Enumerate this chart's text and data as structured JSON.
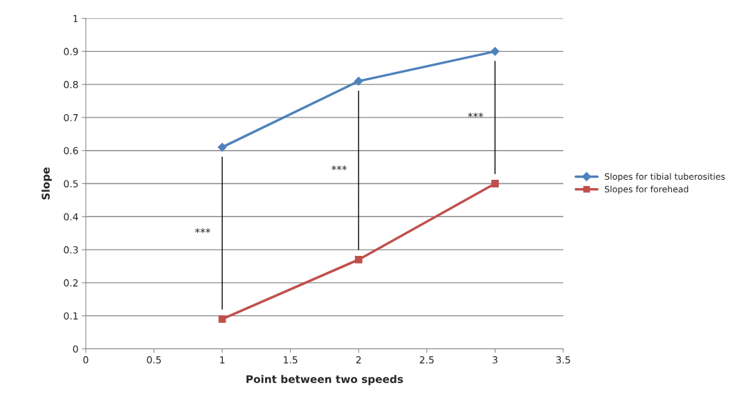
{
  "chart_data": {
    "type": "line",
    "xlabel": "Point between two speeds",
    "ylabel": "Slope",
    "x": [
      1,
      2,
      3
    ],
    "series": [
      {
        "name": "Slopes for tibial tuberosities",
        "color": "#4f81bd",
        "marker": "diamond",
        "values": [
          0.61,
          0.81,
          0.9
        ]
      },
      {
        "name": "Slopes for forehead",
        "color": "#c0504d",
        "marker": "square",
        "values": [
          0.09,
          0.27,
          0.5
        ]
      }
    ],
    "xlim": [
      0,
      3.5
    ],
    "xticks": [
      0,
      0.5,
      1,
      1.5,
      2,
      2.5,
      3,
      3.5
    ],
    "ylim": [
      0,
      1
    ],
    "yticks": [
      0,
      0.1,
      0.2,
      0.3,
      0.4,
      0.5,
      0.6,
      0.7,
      0.8,
      0.9,
      1
    ],
    "grid": "y",
    "legend": "right",
    "annotations": [
      "***",
      "***",
      "***"
    ]
  }
}
